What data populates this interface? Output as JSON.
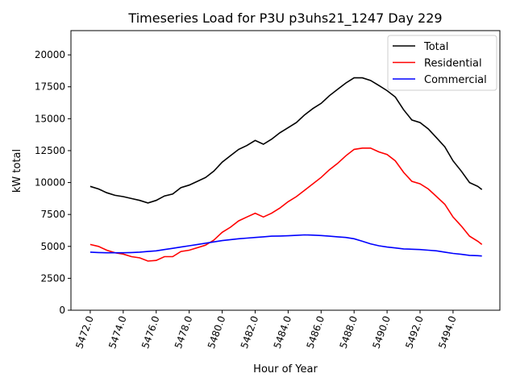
{
  "chart_data": {
    "type": "line",
    "title": "Timeseries Load for P3U p3uhs21_1247  Day 229",
    "xlabel": "Hour of Year",
    "ylabel": "kW total",
    "xlim": [
      5470.83,
      5496.84
    ],
    "ylim": [
      0,
      21900
    ],
    "xticks": [
      5472,
      5474,
      5476,
      5478,
      5480,
      5482,
      5484,
      5486,
      5488,
      5490,
      5492,
      5494
    ],
    "xtick_labels": [
      "5472.0",
      "5474.0",
      "5476.0",
      "5478.0",
      "5480.0",
      "5482.0",
      "5484.0",
      "5486.0",
      "5488.0",
      "5490.0",
      "5492.0",
      "5494.0"
    ],
    "yticks": [
      0,
      2500,
      5000,
      7500,
      10000,
      12500,
      15000,
      17500,
      20000
    ],
    "ytick_labels": [
      "0",
      "2500",
      "5000",
      "7500",
      "10000",
      "12500",
      "15000",
      "17500",
      "20000"
    ],
    "grid": false,
    "legend_position": "top-right",
    "x": [
      5472,
      5472.5,
      5473,
      5473.5,
      5474,
      5474.5,
      5475,
      5475.5,
      5476,
      5476.5,
      5477,
      5477.5,
      5478,
      5478.5,
      5479,
      5479.5,
      5480,
      5480.5,
      5481,
      5481.5,
      5482,
      5482.5,
      5483,
      5483.5,
      5484,
      5484.5,
      5485,
      5485.5,
      5486,
      5486.5,
      5487,
      5487.5,
      5488,
      5488.5,
      5489,
      5489.5,
      5490,
      5490.5,
      5491,
      5491.5,
      5492,
      5492.5,
      5493,
      5493.5,
      5494,
      5494.5,
      5495,
      5495.5,
      5495.75
    ],
    "series": [
      {
        "name": "Total",
        "color": "#000000",
        "values": [
          9700,
          9500,
          9200,
          9000,
          8900,
          8750,
          8600,
          8400,
          8600,
          8950,
          9100,
          9600,
          9800,
          10100,
          10400,
          10900,
          11600,
          12100,
          12600,
          12900,
          13300,
          13000,
          13400,
          13900,
          14300,
          14700,
          15300,
          15800,
          16200,
          16800,
          17300,
          17800,
          18200,
          18200,
          18000,
          17600,
          17200,
          16700,
          15700,
          14900,
          14700,
          14200,
          13500,
          12800,
          11700,
          10900,
          10000,
          9700,
          9450
        ]
      },
      {
        "name": "Residential",
        "color": "#ff0000",
        "values": [
          5150,
          5000,
          4700,
          4500,
          4400,
          4200,
          4100,
          3850,
          3900,
          4200,
          4200,
          4600,
          4700,
          4900,
          5100,
          5500,
          6100,
          6500,
          7000,
          7300,
          7600,
          7300,
          7600,
          8000,
          8500,
          8900,
          9400,
          9900,
          10400,
          11000,
          11500,
          12100,
          12600,
          12700,
          12700,
          12400,
          12200,
          11700,
          10800,
          10100,
          9900,
          9500,
          8900,
          8300,
          7300,
          6600,
          5800,
          5400,
          5150
        ]
      },
      {
        "name": "Commercial",
        "color": "#0000ff",
        "values": [
          4550,
          4520,
          4500,
          4500,
          4500,
          4520,
          4550,
          4600,
          4650,
          4750,
          4850,
          4950,
          5050,
          5150,
          5250,
          5350,
          5450,
          5530,
          5600,
          5650,
          5700,
          5750,
          5800,
          5810,
          5830,
          5860,
          5900,
          5880,
          5850,
          5800,
          5750,
          5700,
          5600,
          5400,
          5200,
          5050,
          4950,
          4880,
          4800,
          4780,
          4750,
          4700,
          4650,
          4550,
          4450,
          4380,
          4300,
          4270,
          4250
        ]
      }
    ]
  }
}
